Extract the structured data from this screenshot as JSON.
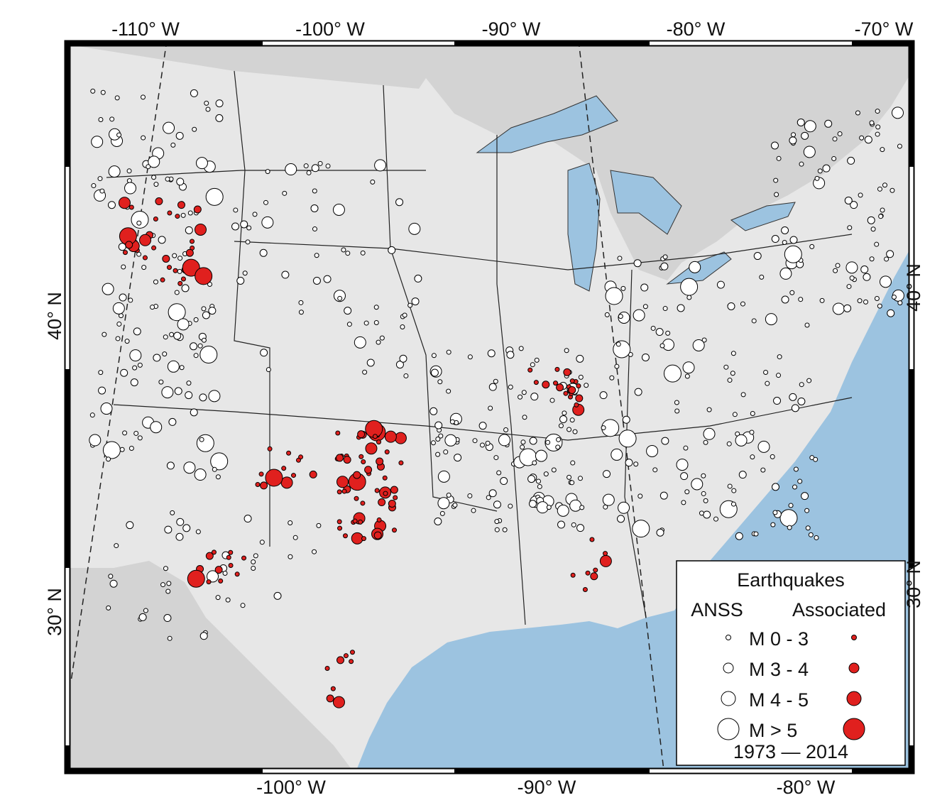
{
  "axes": {
    "top": [
      "-110° W",
      "-100° W",
      "-90° W",
      "-80° W",
      "-70° W"
    ],
    "bottom": [
      "-100° W",
      "-90° W",
      "-80° W"
    ],
    "left": [
      "40° N",
      "30° N"
    ],
    "right": [
      "40° N",
      "30° N"
    ]
  },
  "legend": {
    "title": "Earthquakes",
    "columns": [
      "ANSS",
      "Associated"
    ],
    "classes": [
      "M 0 - 3",
      "M 3 - 4",
      "M 4 - 5",
      "M  > 5"
    ],
    "period": "1973 — 2014"
  }
}
